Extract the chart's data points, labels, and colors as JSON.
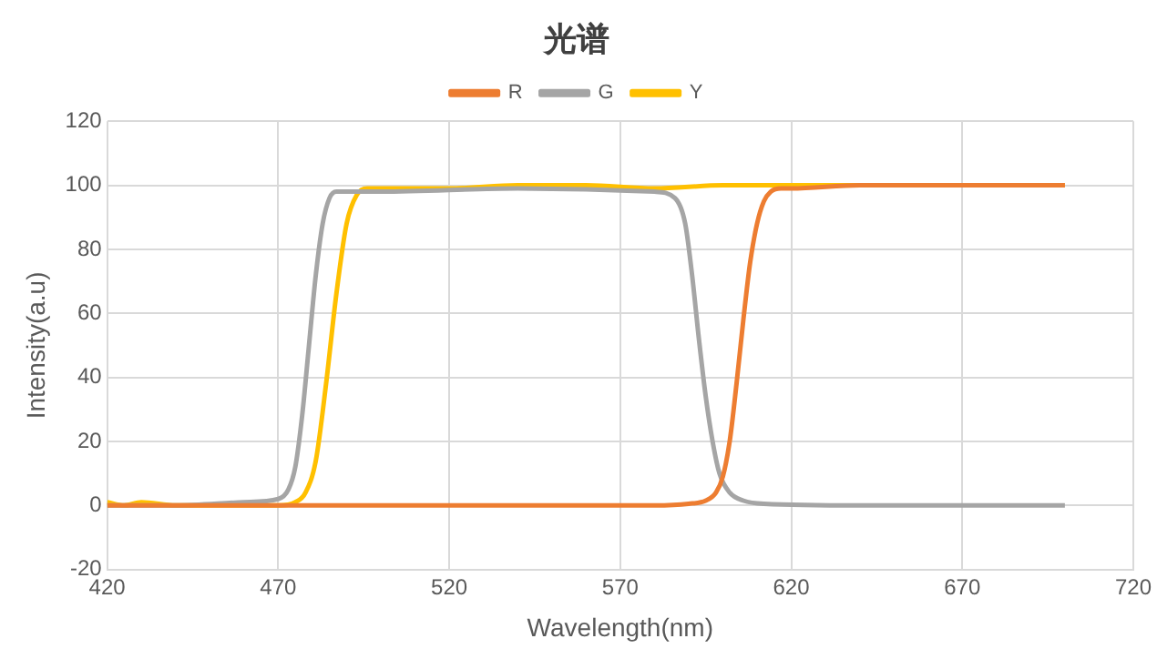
{
  "chart_data": {
    "type": "line",
    "title": "光谱",
    "xlabel": "Wavelength(nm)",
    "ylabel": "Intensity(a.u)",
    "xlim": [
      420,
      720
    ],
    "xticks": [
      420,
      470,
      520,
      570,
      620,
      670,
      720
    ],
    "ylim": [
      -20,
      120
    ],
    "yticks": [
      -20,
      0,
      20,
      40,
      60,
      80,
      100,
      120
    ],
    "grid": true,
    "legend": "top",
    "marker": "none",
    "line_style": "solid",
    "series": [
      {
        "name": "R",
        "color": "#ed7d31",
        "x": [
          420,
          500,
          580,
          590,
          595,
          598,
          600,
          602,
          604,
          606,
          608,
          610,
          612,
          614,
          617,
          620,
          640,
          700
        ],
        "values": [
          0,
          0,
          0,
          0.5,
          1.5,
          4,
          9,
          20,
          38,
          58,
          76,
          88,
          95,
          98,
          99,
          99,
          100,
          100
        ]
      },
      {
        "name": "G",
        "color": "#a5a5a5",
        "x": [
          420,
          440,
          460,
          470,
          473,
          475,
          477,
          479,
          481,
          483,
          485,
          487,
          490,
          500,
          540,
          580,
          586,
          589,
          591,
          593,
          595,
          597,
          599,
          602,
          606,
          612,
          640,
          700
        ],
        "values": [
          0,
          0,
          1,
          2,
          5,
          12,
          28,
          50,
          72,
          88,
          96,
          98,
          98,
          98,
          99,
          98,
          96,
          88,
          72,
          52,
          34,
          20,
          10,
          4,
          1.5,
          0.5,
          0,
          0
        ]
      },
      {
        "name": "Y",
        "color": "#ffc000",
        "x": [
          420,
          425,
          430,
          440,
          460,
          470,
          475,
          478,
          481,
          484,
          487,
          490,
          493,
          496,
          500,
          520,
          540,
          560,
          580,
          600,
          640,
          700
        ],
        "values": [
          1,
          0,
          1,
          0,
          0,
          0,
          1,
          4,
          14,
          38,
          66,
          88,
          97,
          99,
          99,
          99,
          100,
          100,
          99,
          100,
          100,
          100
        ]
      }
    ]
  }
}
